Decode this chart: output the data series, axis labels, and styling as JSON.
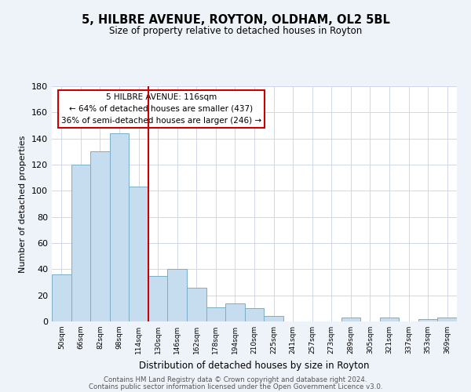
{
  "title": "5, HILBRE AVENUE, ROYTON, OLDHAM, OL2 5BL",
  "subtitle": "Size of property relative to detached houses in Royton",
  "xlabel": "Distribution of detached houses by size in Royton",
  "ylabel": "Number of detached properties",
  "bar_color": "#c5ddef",
  "bar_edge_color": "#7aaec8",
  "vline_color": "#cc0000",
  "vline_x": 4.5,
  "annotation_title": "5 HILBRE AVENUE: 116sqm",
  "annotation_line1": "← 64% of detached houses are smaller (437)",
  "annotation_line2": "36% of semi-detached houses are larger (246) →",
  "annotation_box_color": "#ffffff",
  "annotation_box_edge": "#cc0000",
  "categories": [
    "50sqm",
    "66sqm",
    "82sqm",
    "98sqm",
    "114sqm",
    "130sqm",
    "146sqm",
    "162sqm",
    "178sqm",
    "194sqm",
    "210sqm",
    "225sqm",
    "241sqm",
    "257sqm",
    "273sqm",
    "289sqm",
    "305sqm",
    "321sqm",
    "337sqm",
    "353sqm",
    "369sqm"
  ],
  "values": [
    36,
    120,
    130,
    144,
    103,
    35,
    40,
    26,
    11,
    14,
    10,
    4,
    0,
    0,
    0,
    3,
    0,
    3,
    0,
    2,
    3
  ],
  "ylim": [
    0,
    180
  ],
  "yticks": [
    0,
    20,
    40,
    60,
    80,
    100,
    120,
    140,
    160,
    180
  ],
  "footer1": "Contains HM Land Registry data © Crown copyright and database right 2024.",
  "footer2": "Contains public sector information licensed under the Open Government Licence v3.0.",
  "bg_color": "#eef2f9",
  "plot_bg_color": "#ffffff",
  "grid_color": "#d0d8e8"
}
